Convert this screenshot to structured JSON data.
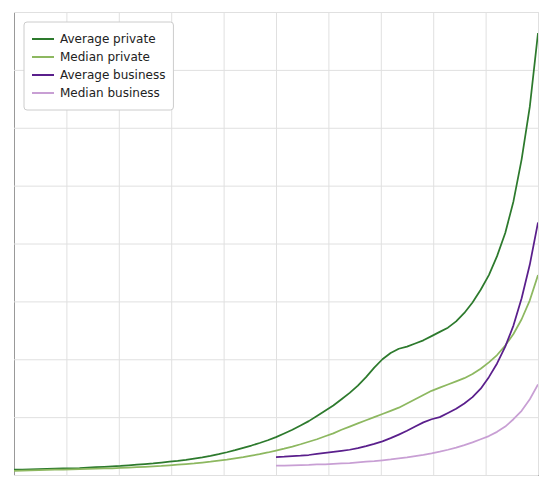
{
  "chart_data": {
    "type": "line",
    "x": [
      0,
      1,
      2,
      3,
      4,
      5,
      6,
      7,
      8,
      9,
      10,
      11,
      12,
      13,
      14,
      15,
      16,
      17,
      18,
      19,
      20,
      21,
      22,
      23,
      24,
      25,
      26,
      27,
      28,
      29,
      30,
      31,
      32,
      33,
      34,
      35,
      36,
      37,
      38,
      39,
      40,
      41,
      42,
      43,
      44,
      45,
      46,
      47,
      48,
      49,
      50,
      51,
      52,
      53,
      54,
      55,
      56,
      57,
      58,
      59,
      60,
      61,
      62,
      63,
      64
    ],
    "xlim": [
      0,
      64
    ],
    "xticks": [
      0,
      6.4,
      12.8,
      19.2,
      25.6,
      32,
      38.4,
      44.8,
      51.2,
      57.6,
      64
    ],
    "ylim": [
      0,
      220
    ],
    "yticks": [
      0,
      27.5,
      55,
      82.5,
      110,
      137.5,
      165,
      192.5,
      220
    ],
    "grid": true,
    "tick_labels": false,
    "legend": "upper left",
    "series": [
      {
        "name": "Average private",
        "color": "#2d7a2d",
        "values": [
          2.5,
          2.6,
          2.7,
          2.8,
          2.9,
          3.0,
          3.1,
          3.2,
          3.3,
          3.5,
          3.7,
          3.9,
          4.1,
          4.3,
          4.6,
          4.9,
          5.2,
          5.5,
          5.9,
          6.3,
          6.7,
          7.2,
          7.8,
          8.4,
          9.1,
          9.9,
          10.8,
          11.8,
          12.9,
          14.0,
          15.2,
          16.5,
          18.0,
          19.7,
          21.5,
          23.5,
          25.6,
          28.0,
          30.5,
          33.0,
          36.0,
          39.0,
          42.5,
          46.5,
          51.0,
          55.0,
          58.0,
          60.0,
          61.0,
          62.5,
          64.0,
          66.0,
          68.0,
          70.0,
          73.0,
          77.0,
          82.0,
          88.0,
          95.0,
          104.0,
          115.0,
          130.0,
          150.0,
          175.0,
          210.0
        ]
      },
      {
        "name": "Median private",
        "color": "#8db860",
        "values": [
          2.0,
          2.1,
          2.2,
          2.3,
          2.4,
          2.5,
          2.6,
          2.7,
          2.8,
          2.9,
          3.0,
          3.1,
          3.2,
          3.35,
          3.5,
          3.7,
          3.9,
          4.1,
          4.3,
          4.6,
          4.9,
          5.2,
          5.5,
          5.9,
          6.3,
          6.8,
          7.3,
          7.9,
          8.5,
          9.2,
          9.9,
          10.7,
          11.6,
          12.5,
          13.5,
          14.6,
          15.8,
          17.0,
          18.4,
          19.8,
          21.5,
          23.0,
          24.5,
          26.0,
          27.5,
          29.0,
          30.5,
          32.0,
          34.0,
          36.0,
          38.0,
          40.0,
          41.5,
          43.0,
          44.5,
          46.0,
          48.0,
          50.5,
          53.5,
          57.0,
          61.5,
          67.0,
          74.0,
          83.0,
          95.0
        ]
      },
      {
        "name": "Average business",
        "color": "#5a1f8c",
        "values": [
          null,
          null,
          null,
          null,
          null,
          null,
          null,
          null,
          null,
          null,
          null,
          null,
          null,
          null,
          null,
          null,
          null,
          null,
          null,
          null,
          null,
          null,
          null,
          null,
          null,
          null,
          null,
          null,
          null,
          null,
          null,
          null,
          8.5,
          8.7,
          9.0,
          9.2,
          9.5,
          10.0,
          10.5,
          11.0,
          11.5,
          12.0,
          12.8,
          13.7,
          14.8,
          16.0,
          17.5,
          19.2,
          21.0,
          23.0,
          25.0,
          26.5,
          27.5,
          29.5,
          31.5,
          34.0,
          37.0,
          41.0,
          46.5,
          53.0,
          61.0,
          71.0,
          84.0,
          100.0,
          120.0
        ]
      },
      {
        "name": "Median business",
        "color": "#c89fd4",
        "values": [
          null,
          null,
          null,
          null,
          null,
          null,
          null,
          null,
          null,
          null,
          null,
          null,
          null,
          null,
          null,
          null,
          null,
          null,
          null,
          null,
          null,
          null,
          null,
          null,
          null,
          null,
          null,
          null,
          null,
          null,
          null,
          null,
          4.5,
          4.5,
          4.6,
          4.7,
          4.8,
          5.0,
          5.1,
          5.3,
          5.5,
          5.7,
          6.0,
          6.3,
          6.6,
          7.0,
          7.4,
          7.9,
          8.4,
          9.0,
          9.6,
          10.3,
          11.1,
          12.0,
          13.0,
          14.2,
          15.5,
          17.0,
          18.5,
          20.5,
          23.0,
          26.5,
          30.5,
          36.0,
          43.0
        ]
      }
    ]
  }
}
